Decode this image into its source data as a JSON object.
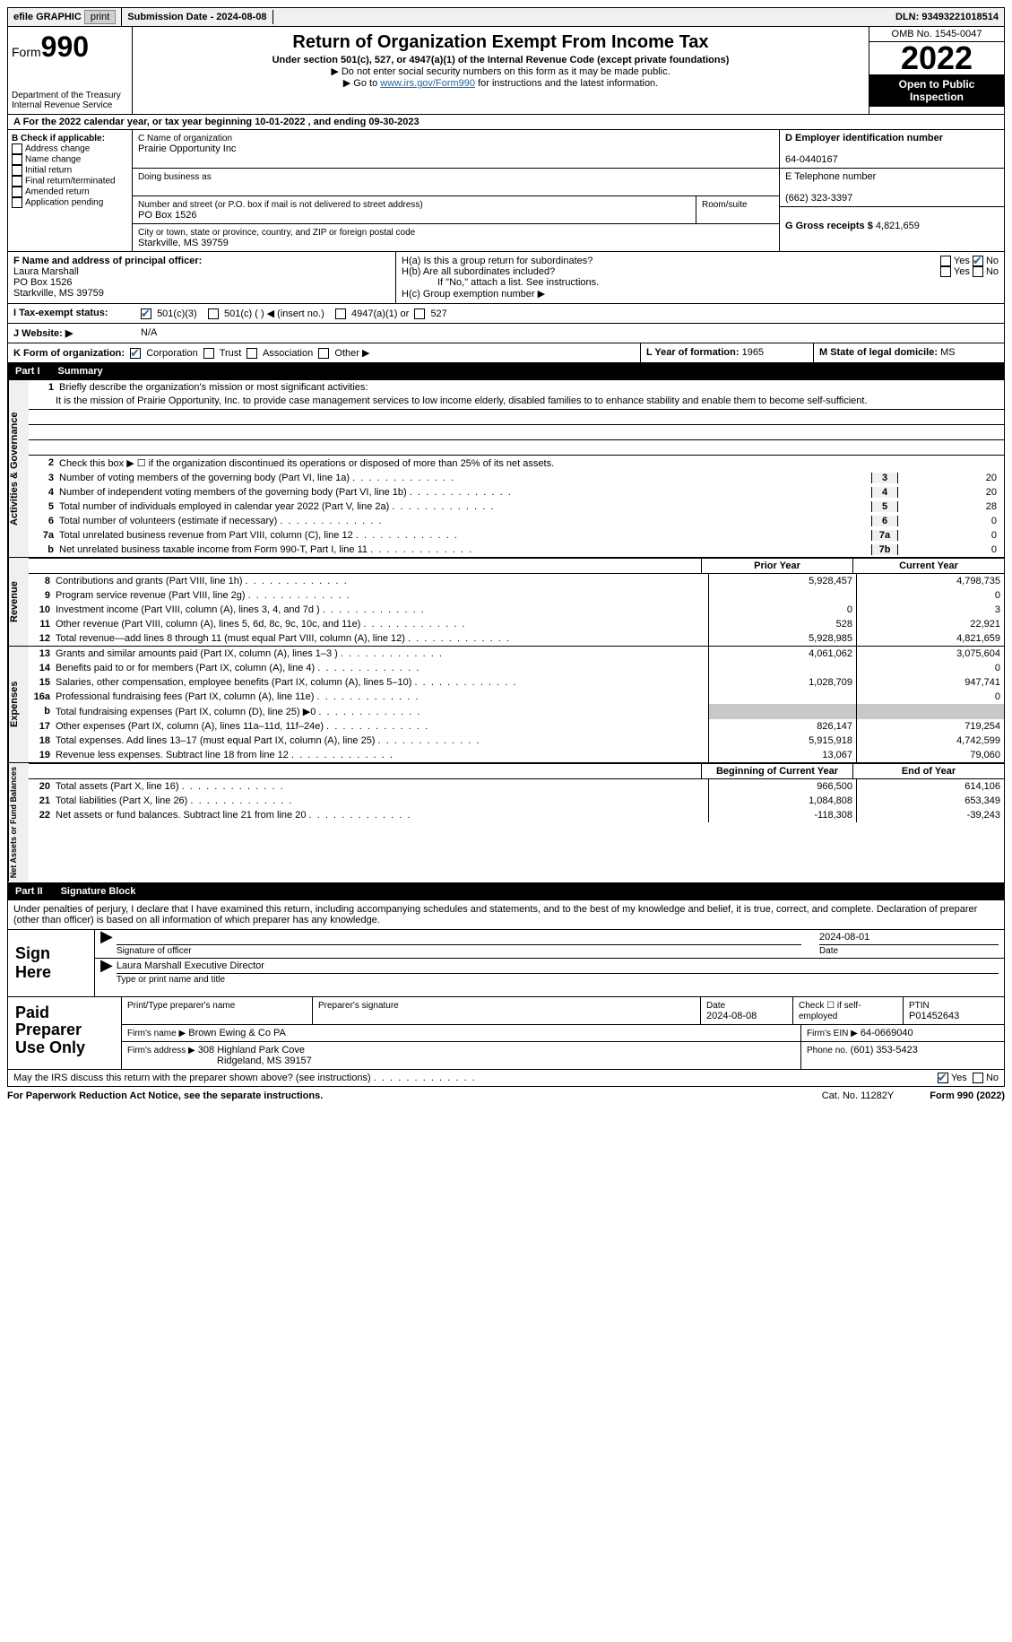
{
  "topbar": {
    "efile_label": "efile GRAPHIC",
    "print_btn": "print",
    "submission_label": "Submission Date - 2024-08-08",
    "dln_label": "DLN: 93493221018514"
  },
  "header": {
    "form_prefix": "Form",
    "form_number": "990",
    "dept": "Department of the Treasury",
    "irs": "Internal Revenue Service",
    "title": "Return of Organization Exempt From Income Tax",
    "subtitle": "Under section 501(c), 527, or 4947(a)(1) of the Internal Revenue Code (except private foundations)",
    "note1": "▶ Do not enter social security numbers on this form as it may be made public.",
    "note2_prefix": "▶ Go to ",
    "note2_link": "www.irs.gov/Form990",
    "note2_suffix": " for instructions and the latest information.",
    "omb": "OMB No. 1545-0047",
    "year": "2022",
    "open": "Open to Public Inspection"
  },
  "row_a": "A For the 2022 calendar year, or tax year beginning 10-01-2022    , and ending 09-30-2023",
  "section_b": {
    "label": "B Check if applicable:",
    "items": [
      "Address change",
      "Name change",
      "Initial return",
      "Final return/terminated",
      "Amended return",
      "Application pending"
    ]
  },
  "section_c": {
    "name_label": "C Name of organization",
    "name": "Prairie Opportunity Inc",
    "dba_label": "Doing business as",
    "addr_label": "Number and street (or P.O. box if mail is not delivered to street address)",
    "room_label": "Room/suite",
    "addr": "PO Box 1526",
    "city_label": "City or town, state or province, country, and ZIP or foreign postal code",
    "city": "Starkville, MS  39759"
  },
  "section_d": {
    "ein_label": "D Employer identification number",
    "ein": "64-0440167",
    "phone_label": "E Telephone number",
    "phone": "(662) 323-3397",
    "gross_label": "G Gross receipts $",
    "gross": "4,821,659"
  },
  "section_f": {
    "label": "F Name and address of principal officer:",
    "name": "Laura Marshall",
    "addr1": "PO Box 1526",
    "addr2": "Starkville, MS  39759"
  },
  "section_h": {
    "ha": "H(a)  Is this a group return for subordinates?",
    "hb": "H(b)  Are all subordinates included?",
    "hb_note": "If \"No,\" attach a list. See instructions.",
    "hc": "H(c)  Group exemption number ▶",
    "yes": "Yes",
    "no": "No"
  },
  "row_i": {
    "label": "I  Tax-exempt status:",
    "opt1": "501(c)(3)",
    "opt2": "501(c) (   ) ◀ (insert no.)",
    "opt3": "4947(a)(1) or",
    "opt4": "527"
  },
  "row_j": {
    "label": "J  Website: ▶",
    "value": "N/A"
  },
  "row_k": {
    "label": "K Form of organization:",
    "opts": [
      "Corporation",
      "Trust",
      "Association",
      "Other ▶"
    ],
    "l_label": "L Year of formation:",
    "l_val": "1965",
    "m_label": "M State of legal domicile:",
    "m_val": "MS"
  },
  "part1": {
    "label": "Part I",
    "title": "Summary"
  },
  "mission": {
    "q": "Briefly describe the organization's mission or most significant activities:",
    "text": "It is the mission of Prairie Opportunity, Inc. to provide case management services to low income elderly, disabled families to to enhance stability and enable them to become self-sufficient."
  },
  "line2": "Check this box ▶ ☐ if the organization discontinued its operations or disposed of more than 25% of its net assets.",
  "governance_lines": [
    {
      "n": "3",
      "d": "Number of voting members of the governing body (Part VI, line 1a)",
      "box": "3",
      "v": "20"
    },
    {
      "n": "4",
      "d": "Number of independent voting members of the governing body (Part VI, line 1b)",
      "box": "4",
      "v": "20"
    },
    {
      "n": "5",
      "d": "Total number of individuals employed in calendar year 2022 (Part V, line 2a)",
      "box": "5",
      "v": "28"
    },
    {
      "n": "6",
      "d": "Total number of volunteers (estimate if necessary)",
      "box": "6",
      "v": "0"
    },
    {
      "n": "7a",
      "d": "Total unrelated business revenue from Part VIII, column (C), line 12",
      "box": "7a",
      "v": "0"
    },
    {
      "n": "b",
      "d": "Net unrelated business taxable income from Form 990-T, Part I, line 11",
      "box": "7b",
      "v": "0"
    }
  ],
  "col_headers": {
    "prior": "Prior Year",
    "current": "Current Year"
  },
  "revenue_lines": [
    {
      "n": "8",
      "d": "Contributions and grants (Part VIII, line 1h)",
      "v1": "5,928,457",
      "v2": "4,798,735"
    },
    {
      "n": "9",
      "d": "Program service revenue (Part VIII, line 2g)",
      "v1": "",
      "v2": "0"
    },
    {
      "n": "10",
      "d": "Investment income (Part VIII, column (A), lines 3, 4, and 7d )",
      "v1": "0",
      "v2": "3"
    },
    {
      "n": "11",
      "d": "Other revenue (Part VIII, column (A), lines 5, 6d, 8c, 9c, 10c, and 11e)",
      "v1": "528",
      "v2": "22,921"
    },
    {
      "n": "12",
      "d": "Total revenue—add lines 8 through 11 (must equal Part VIII, column (A), line 12)",
      "v1": "5,928,985",
      "v2": "4,821,659"
    }
  ],
  "expense_lines": [
    {
      "n": "13",
      "d": "Grants and similar amounts paid (Part IX, column (A), lines 1–3 )",
      "v1": "4,061,062",
      "v2": "3,075,604"
    },
    {
      "n": "14",
      "d": "Benefits paid to or for members (Part IX, column (A), line 4)",
      "v1": "",
      "v2": "0"
    },
    {
      "n": "15",
      "d": "Salaries, other compensation, employee benefits (Part IX, column (A), lines 5–10)",
      "v1": "1,028,709",
      "v2": "947,741"
    },
    {
      "n": "16a",
      "d": "Professional fundraising fees (Part IX, column (A), line 11e)",
      "v1": "",
      "v2": "0"
    },
    {
      "n": "b",
      "d": "Total fundraising expenses (Part IX, column (D), line 25) ▶0",
      "v1": "grey",
      "v2": "grey"
    },
    {
      "n": "17",
      "d": "Other expenses (Part IX, column (A), lines 11a–11d, 11f–24e)",
      "v1": "826,147",
      "v2": "719,254"
    },
    {
      "n": "18",
      "d": "Total expenses. Add lines 13–17 (must equal Part IX, column (A), line 25)",
      "v1": "5,915,918",
      "v2": "4,742,599"
    },
    {
      "n": "19",
      "d": "Revenue less expenses. Subtract line 18 from line 12",
      "v1": "13,067",
      "v2": "79,060"
    }
  ],
  "net_headers": {
    "begin": "Beginning of Current Year",
    "end": "End of Year"
  },
  "net_lines": [
    {
      "n": "20",
      "d": "Total assets (Part X, line 16)",
      "v1": "966,500",
      "v2": "614,106"
    },
    {
      "n": "21",
      "d": "Total liabilities (Part X, line 26)",
      "v1": "1,084,808",
      "v2": "653,349"
    },
    {
      "n": "22",
      "d": "Net assets or fund balances. Subtract line 21 from line 20",
      "v1": "-118,308",
      "v2": "-39,243"
    }
  ],
  "vtabs": {
    "gov": "Activities & Governance",
    "rev": "Revenue",
    "exp": "Expenses",
    "net": "Net Assets or Fund Balances"
  },
  "part2": {
    "label": "Part II",
    "title": "Signature Block"
  },
  "sig_declaration": "Under penalties of perjury, I declare that I have examined this return, including accompanying schedules and statements, and to the best of my knowledge and belief, it is true, correct, and complete. Declaration of preparer (other than officer) is based on all information of which preparer has any knowledge.",
  "sign": {
    "label": "Sign Here",
    "sig_of_officer": "Signature of officer",
    "date": "2024-08-01",
    "date_label": "Date",
    "name": "Laura Marshall  Executive Director",
    "name_label": "Type or print name and title"
  },
  "preparer": {
    "label": "Paid Preparer Use Only",
    "h_print": "Print/Type preparer's name",
    "h_sig": "Preparer's signature",
    "h_date": "Date",
    "date": "2024-08-08",
    "h_check": "Check ☐ if self-employed",
    "h_ptin": "PTIN",
    "ptin": "P01452643",
    "firm_name_label": "Firm's name    ▶",
    "firm_name": "Brown Ewing & Co PA",
    "firm_ein_label": "Firm's EIN ▶",
    "firm_ein": "64-0669040",
    "firm_addr_label": "Firm's address ▶",
    "firm_addr1": "308 Highland Park Cove",
    "firm_addr2": "Ridgeland, MS  39157",
    "phone_label": "Phone no.",
    "phone": "(601) 353-5423"
  },
  "discuss": {
    "q": "May the IRS discuss this return with the preparer shown above? (see instructions)",
    "yes": "Yes",
    "no": "No"
  },
  "footer": {
    "left": "For Paperwork Reduction Act Notice, see the separate instructions.",
    "mid": "Cat. No. 11282Y",
    "right": "Form 990 (2022)"
  }
}
